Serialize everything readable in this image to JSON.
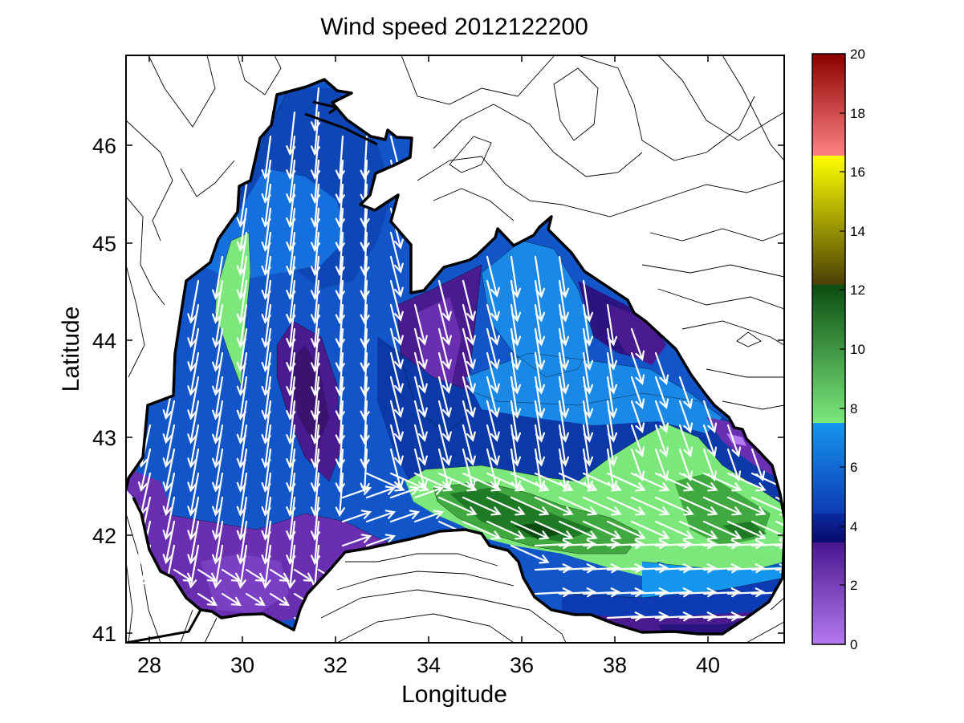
{
  "chart_data": {
    "type": "contour_map",
    "title": "Wind speed 2012122200",
    "xlabel": "Longitude",
    "ylabel": "Latitude",
    "xlim": [
      27.5,
      41.7
    ],
    "ylim": [
      40.9,
      46.9
    ],
    "xticks": [
      "28",
      "30",
      "32",
      "34",
      "36",
      "38",
      "40"
    ],
    "yticks": [
      "41",
      "42",
      "43",
      "44",
      "45",
      "46"
    ],
    "colorbar": {
      "range": [
        0,
        20
      ],
      "ticks": [
        "0",
        "2",
        "4",
        "6",
        "8",
        "10",
        "12",
        "14",
        "16",
        "18",
        "20"
      ],
      "bands": [
        {
          "from": 0,
          "to": 3.5,
          "color_low": "#b579f2",
          "color_high": "#4a168f"
        },
        {
          "from": 3.5,
          "to": 4.5,
          "color_low": "#0a0a6e",
          "color_high": "#0a2a9e"
        },
        {
          "from": 4.5,
          "to": 7.5,
          "color_low": "#0d3bb3",
          "color_high": "#1596ee"
        },
        {
          "from": 7.5,
          "to": 12.0,
          "color_low": "#7ce87c",
          "color_high": "#0b4d11"
        },
        {
          "from": 12.0,
          "to": 16.0,
          "color_low": "#4a4006",
          "color_high": "#ffff00"
        },
        {
          "from": 16.0,
          "to": 20.0,
          "color_low": "#ff8282",
          "color_high": "#8b0000"
        }
      ]
    },
    "wind_field": {
      "description": "predominantly southward / south-eastward winds over the Black Sea",
      "max_speed": 11.5,
      "max_region": "south-central and eastern basin near 42N, 35-41E"
    },
    "grid": false
  }
}
